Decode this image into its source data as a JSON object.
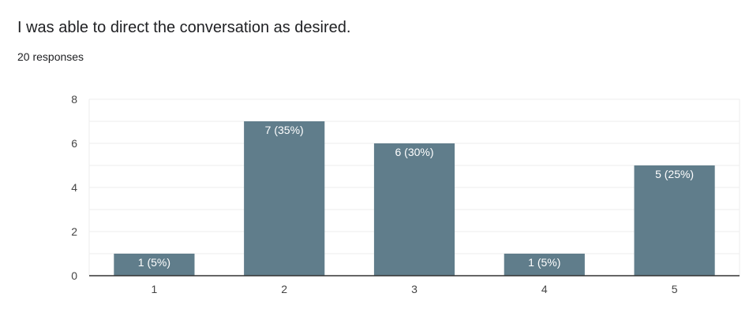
{
  "question": {
    "title": "I was able to direct the conversation as desired.",
    "responses": "20 responses"
  },
  "colors": {
    "bar": "#607d8b",
    "grid": "#eeeeee",
    "axis": "#333333"
  },
  "chart_data": {
    "type": "bar",
    "title": "",
    "xlabel": "",
    "ylabel": "",
    "categories": [
      "1",
      "2",
      "3",
      "4",
      "5"
    ],
    "values": [
      1,
      7,
      6,
      1,
      5
    ],
    "data_labels": [
      "1 (5%)",
      "7 (35%)",
      "6 (30%)",
      "1 (5%)",
      "5 (25%)"
    ],
    "ylim": [
      0,
      8
    ],
    "yticks": [
      0,
      2,
      4,
      6,
      8
    ],
    "grid": true,
    "legend": "none"
  }
}
